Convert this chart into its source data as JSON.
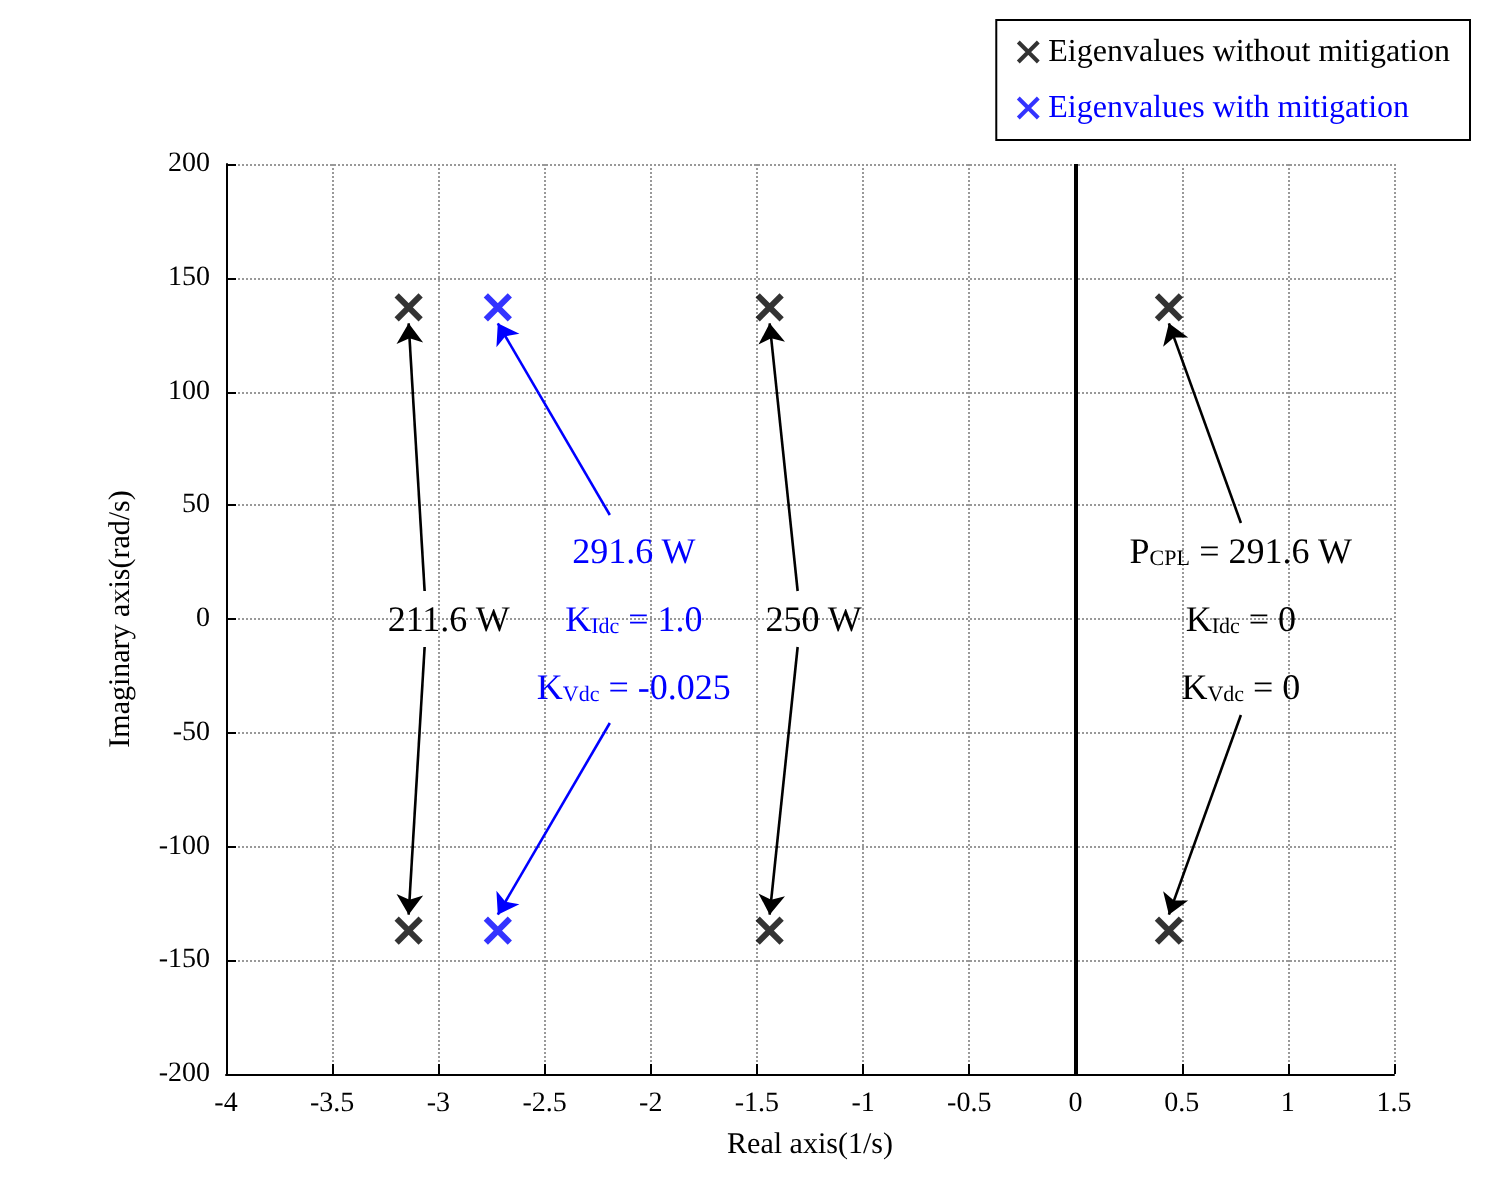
{
  "chart_data": {
    "type": "scatter",
    "xlabel": "Real axis(1/s)",
    "ylabel": "Imaginary axis(rad/s)",
    "series": [
      {
        "name": "Eigenvalues without mitigation",
        "color": "#000000",
        "x": [
          -3.14,
          -3.14,
          -1.44,
          -1.44,
          0.44,
          0.44
        ],
        "values": [
          137,
          -137,
          137,
          -137,
          137,
          -137
        ]
      },
      {
        "name": "Eigenvalues with mitigation",
        "color": "#0000ff",
        "x": [
          -2.72,
          -2.72
        ],
        "values": [
          137,
          -137
        ]
      }
    ],
    "xlim": [
      -4,
      1.5
    ],
    "xticks": [
      -4,
      -3.5,
      -3,
      -2.5,
      -2,
      -1.5,
      -1,
      -0.5,
      0,
      0.5,
      1,
      1.5
    ],
    "ylim": [
      -200,
      200
    ],
    "yticks": [
      -200,
      -150,
      -100,
      -50,
      0,
      50,
      100,
      150,
      200
    ],
    "grid": true,
    "legend": "top right",
    "marker": "cross",
    "ref_lines": [
      {
        "axis": "x",
        "value": 0,
        "color": "#000000",
        "line_style": "solid"
      }
    ],
    "annotations": [
      {
        "text": "211.6 W",
        "x": -3.14,
        "y": 137
      },
      {
        "text": "291.6 W",
        "x": -2.72,
        "y": 137
      },
      "K$_{Idc}$ = 1.0",
      "K$_{Vdc}$ = -0.025",
      {
        "text": "250 W",
        "x": -1.44,
        "y": 137
      },
      {
        "text": "P$_{CPL}$ = 291.6 W",
        "x": 0.44,
        "y": 137
      },
      "K$_{Idc}$ = 0",
      "K$_{Vdc}$ = 0"
    ]
  }
}
